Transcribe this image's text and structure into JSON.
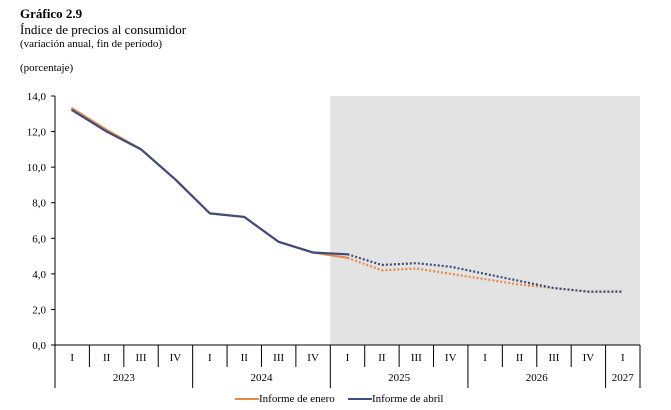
{
  "header": {
    "title": "Gráfico 2.9",
    "subtitle": "Índice de precios al consumidor",
    "note": "(variación anual, fin de período)",
    "unit": "(porcentaje)"
  },
  "chart_data": {
    "type": "line",
    "ylim": [
      0,
      14
    ],
    "y_ticks": [
      "0,0",
      "2,0",
      "4,0",
      "6,0",
      "8,0",
      "10,0",
      "12,0",
      "14,0"
    ],
    "categories": [
      "I",
      "II",
      "III",
      "IV",
      "I",
      "II",
      "III",
      "IV",
      "I",
      "II",
      "III",
      "IV",
      "I",
      "II",
      "III",
      "IV",
      "I"
    ],
    "years": [
      {
        "label": "2023",
        "start": 0,
        "end": 4
      },
      {
        "label": "2024",
        "start": 4,
        "end": 8
      },
      {
        "label": "2025",
        "start": 8,
        "end": 12
      },
      {
        "label": "2026",
        "start": 12,
        "end": 16
      },
      {
        "label": "2027",
        "start": 16,
        "end": 17
      }
    ],
    "projection_start_index": 8,
    "series": [
      {
        "name": "Informe de enero",
        "color": "#e8894a",
        "values": [
          13.3,
          12.1,
          11.0,
          9.3,
          7.4,
          7.2,
          5.8,
          5.2,
          4.9,
          4.2,
          4.3,
          4.0,
          3.7,
          3.4,
          3.2,
          3.0,
          3.0
        ]
      },
      {
        "name": "Informe de abril",
        "color": "#3e4d7c",
        "values": [
          13.2,
          12.0,
          11.0,
          9.3,
          7.4,
          7.2,
          5.8,
          5.2,
          5.1,
          4.5,
          4.6,
          4.4,
          4.0,
          3.6,
          3.2,
          3.0,
          3.0
        ]
      }
    ],
    "shaded_region_color": "#e3e3e3",
    "grid": false,
    "legend_position": "bottom-center"
  }
}
